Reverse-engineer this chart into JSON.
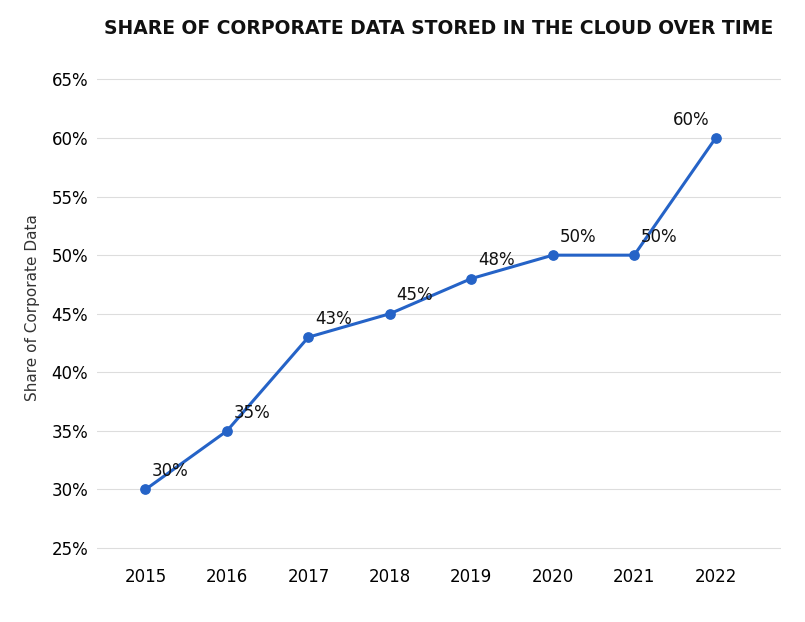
{
  "title": "SHARE OF CORPORATE DATA STORED IN THE CLOUD OVER TIME",
  "years": [
    2015,
    2016,
    2017,
    2018,
    2019,
    2020,
    2021,
    2022
  ],
  "values": [
    30,
    35,
    43,
    45,
    48,
    50,
    50,
    60
  ],
  "ylabel": "Share of Corporate Data",
  "ylim": [
    24,
    67
  ],
  "yticks": [
    25,
    30,
    35,
    40,
    45,
    50,
    55,
    60,
    65
  ],
  "xlim": [
    2014.4,
    2022.8
  ],
  "line_color": "#2563c7",
  "marker_color": "#2563c7",
  "bg_color": "#ffffff",
  "title_fontsize": 13.5,
  "label_fontsize": 11,
  "tick_fontsize": 12,
  "annot_fontsize": 12,
  "annot_configs": [
    {
      "year": 2015,
      "val": 30,
      "ox": 0.08,
      "oy": 0.8,
      "ha": "left"
    },
    {
      "year": 2016,
      "val": 35,
      "ox": 0.08,
      "oy": 0.8,
      "ha": "left"
    },
    {
      "year": 2017,
      "val": 43,
      "ox": 0.08,
      "oy": 0.8,
      "ha": "left"
    },
    {
      "year": 2018,
      "val": 45,
      "ox": 0.08,
      "oy": 0.8,
      "ha": "left"
    },
    {
      "year": 2019,
      "val": 48,
      "ox": 0.08,
      "oy": 0.8,
      "ha": "left"
    },
    {
      "year": 2020,
      "val": 50,
      "ox": 0.08,
      "oy": 0.8,
      "ha": "left"
    },
    {
      "year": 2021,
      "val": 50,
      "ox": 0.08,
      "oy": 0.8,
      "ha": "left"
    },
    {
      "year": 2022,
      "val": 60,
      "ox": -0.08,
      "oy": 0.8,
      "ha": "right"
    }
  ]
}
